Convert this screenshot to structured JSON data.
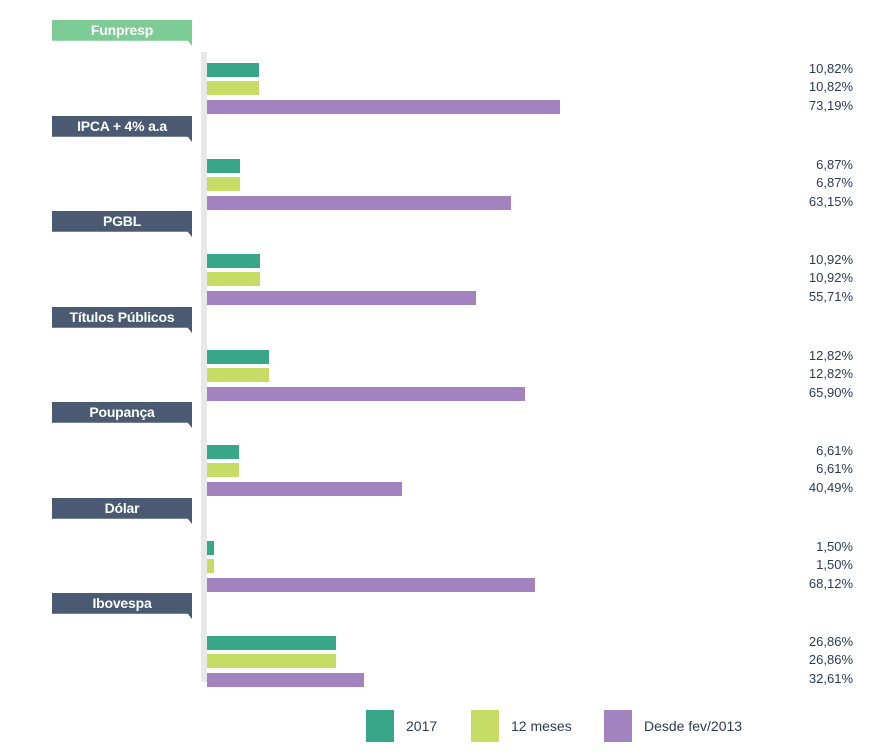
{
  "chart_data": {
    "type": "bar",
    "orientation": "horizontal",
    "categories": [
      "Funpresp",
      "IPCA + 4% a.a",
      "PGBL",
      "Títulos Públicos",
      "Poupança",
      "Dólar",
      "Ibovespa"
    ],
    "series": [
      {
        "name": "2017",
        "values": [
          10.82,
          6.87,
          10.92,
          12.82,
          6.61,
          1.5,
          26.86
        ],
        "labels": [
          "10,82%",
          "6,87%",
          "10,92%",
          "12,82%",
          "6,61%",
          "1,50%",
          "26,86%"
        ]
      },
      {
        "name": "12 meses",
        "values": [
          10.82,
          6.87,
          10.92,
          12.82,
          6.61,
          1.5,
          26.86
        ],
        "labels": [
          "10,82%",
          "6,87%",
          "10,92%",
          "12,82%",
          "6,61%",
          "1,50%",
          "26,86%"
        ]
      },
      {
        "name": "Desde fev/2013",
        "values": [
          73.19,
          63.15,
          55.71,
          65.9,
          40.49,
          68.12,
          32.61
        ],
        "labels": [
          "73,19%",
          "63,15%",
          "55,71%",
          "65,90%",
          "40,49%",
          "68,12%",
          "32,61%"
        ]
      }
    ],
    "series_colors": [
      "#37a787",
      "#c6dc64",
      "#a383bf"
    ],
    "label_colors": [
      "#7dcb95",
      "#4a5a72",
      "#4a5a72",
      "#4a5a72",
      "#4a5a72",
      "#4a5a72",
      "#4a5a72"
    ],
    "xlim": [
      0,
      100
    ],
    "grid": false,
    "legend": "bottom-center",
    "title": "",
    "xlabel": "",
    "ylabel": ""
  }
}
